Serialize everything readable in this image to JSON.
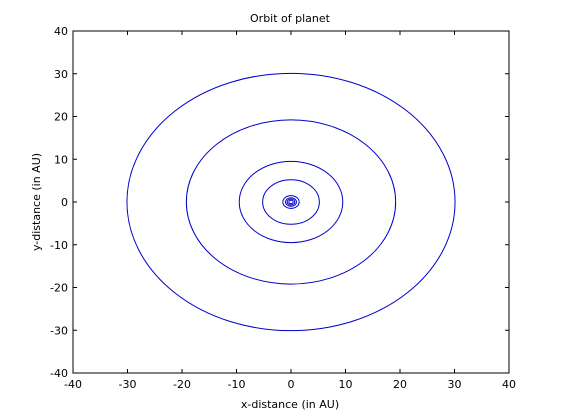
{
  "chart_data": {
    "type": "line",
    "title": "Orbit of planet",
    "xlabel": "x-distance (in AU)",
    "ylabel": "y-distance (in AU)",
    "xlim": [
      -40,
      40
    ],
    "ylim": [
      -40,
      40
    ],
    "xticks": [
      -40,
      -30,
      -20,
      -10,
      0,
      10,
      20,
      30,
      40
    ],
    "yticks": [
      -40,
      -30,
      -20,
      -10,
      0,
      10,
      20,
      30,
      40
    ],
    "grid": false,
    "legend": "none",
    "line_color": "#0000cc",
    "series": [
      {
        "shape": "circle",
        "center": [
          0,
          0
        ],
        "radius": 0.4
      },
      {
        "shape": "circle",
        "center": [
          0,
          0
        ],
        "radius": 0.7
      },
      {
        "shape": "circle",
        "center": [
          0,
          0
        ],
        "radius": 1.0
      },
      {
        "shape": "circle",
        "center": [
          0,
          0
        ],
        "radius": 1.5
      },
      {
        "shape": "circle",
        "center": [
          0,
          0
        ],
        "radius": 5.2
      },
      {
        "shape": "circle",
        "center": [
          0,
          0
        ],
        "radius": 9.5
      },
      {
        "shape": "circle",
        "center": [
          0,
          0
        ],
        "radius": 19.2
      },
      {
        "shape": "circle",
        "center": [
          0,
          0
        ],
        "radius": 30.1
      }
    ]
  }
}
